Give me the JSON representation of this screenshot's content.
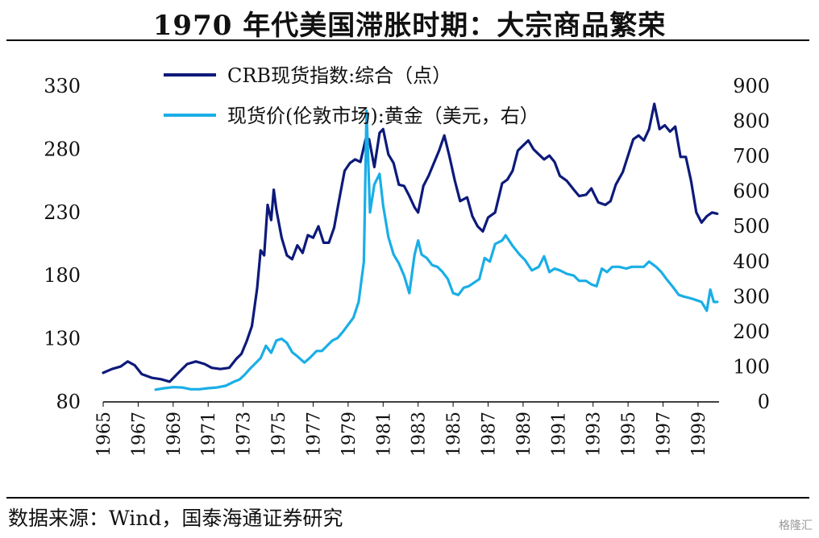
{
  "title": "1970 年代美国滞胀时期：大宗商品繁荣",
  "source": "数据来源：Wind，国泰海通证券研究",
  "watermark": "格隆汇",
  "colors": {
    "crb": "#0d1a7a",
    "gold": "#1aaee6",
    "axis": "#000000"
  },
  "chart_data": {
    "type": "line",
    "x_axis": {
      "ticks": [
        "1965",
        "1967",
        "1969",
        "1971",
        "1973",
        "1975",
        "1977",
        "1979",
        "1981",
        "1983",
        "1985",
        "1987",
        "1989",
        "1991",
        "1993",
        "1995",
        "1997",
        "1999"
      ],
      "range": [
        1965,
        2000.2
      ]
    },
    "y_left": {
      "ticks": [
        80,
        130,
        180,
        230,
        280,
        330
      ],
      "range": [
        80,
        330
      ]
    },
    "y_right": {
      "ticks": [
        0,
        100,
        200,
        300,
        400,
        500,
        600,
        700,
        800,
        900
      ],
      "range": [
        0,
        900
      ]
    },
    "series": [
      {
        "name": "CRB现货指数:综合（点）",
        "axis": "left",
        "points": [
          [
            1965.0,
            103
          ],
          [
            1965.5,
            106
          ],
          [
            1966.0,
            108
          ],
          [
            1966.4,
            112
          ],
          [
            1966.8,
            109
          ],
          [
            1967.2,
            102
          ],
          [
            1967.8,
            99
          ],
          [
            1968.3,
            98
          ],
          [
            1968.8,
            96
          ],
          [
            1969.3,
            103
          ],
          [
            1969.8,
            110
          ],
          [
            1970.3,
            112
          ],
          [
            1970.8,
            110
          ],
          [
            1971.2,
            107
          ],
          [
            1971.7,
            106
          ],
          [
            1972.2,
            107
          ],
          [
            1972.6,
            114
          ],
          [
            1972.9,
            118
          ],
          [
            1973.2,
            128
          ],
          [
            1973.5,
            140
          ],
          [
            1973.8,
            170
          ],
          [
            1974.0,
            200
          ],
          [
            1974.2,
            196
          ],
          [
            1974.4,
            236
          ],
          [
            1974.6,
            224
          ],
          [
            1974.75,
            248
          ],
          [
            1974.9,
            232
          ],
          [
            1975.2,
            210
          ],
          [
            1975.5,
            196
          ],
          [
            1975.8,
            193
          ],
          [
            1976.1,
            204
          ],
          [
            1976.4,
            198
          ],
          [
            1976.7,
            212
          ],
          [
            1977.0,
            210
          ],
          [
            1977.3,
            219
          ],
          [
            1977.6,
            206
          ],
          [
            1977.9,
            206
          ],
          [
            1978.2,
            218
          ],
          [
            1978.5,
            241
          ],
          [
            1978.8,
            263
          ],
          [
            1979.1,
            269
          ],
          [
            1979.4,
            272
          ],
          [
            1979.7,
            270
          ],
          [
            1980.0,
            288
          ],
          [
            1980.2,
            288
          ],
          [
            1980.5,
            266
          ],
          [
            1980.8,
            293
          ],
          [
            1981.0,
            296
          ],
          [
            1981.3,
            276
          ],
          [
            1981.6,
            269
          ],
          [
            1981.9,
            252
          ],
          [
            1982.2,
            251
          ],
          [
            1982.5,
            243
          ],
          [
            1982.8,
            234
          ],
          [
            1983.0,
            230
          ],
          [
            1983.3,
            251
          ],
          [
            1983.6,
            259
          ],
          [
            1983.9,
            269
          ],
          [
            1984.2,
            279
          ],
          [
            1984.5,
            291
          ],
          [
            1984.8,
            274
          ],
          [
            1985.1,
            255
          ],
          [
            1985.4,
            239
          ],
          [
            1985.8,
            242
          ],
          [
            1986.1,
            227
          ],
          [
            1986.4,
            219
          ],
          [
            1986.7,
            215
          ],
          [
            1987.0,
            226
          ],
          [
            1987.4,
            230
          ],
          [
            1987.8,
            253
          ],
          [
            1988.1,
            256
          ],
          [
            1988.4,
            263
          ],
          [
            1988.7,
            279
          ],
          [
            1989.0,
            283
          ],
          [
            1989.3,
            287
          ],
          [
            1989.6,
            280
          ],
          [
            1989.9,
            276
          ],
          [
            1990.2,
            272
          ],
          [
            1990.5,
            275
          ],
          [
            1990.8,
            270
          ],
          [
            1991.1,
            259
          ],
          [
            1991.5,
            255
          ],
          [
            1991.9,
            248
          ],
          [
            1992.2,
            243
          ],
          [
            1992.6,
            244
          ],
          [
            1992.9,
            249
          ],
          [
            1993.3,
            238
          ],
          [
            1993.7,
            236
          ],
          [
            1994.0,
            239
          ],
          [
            1994.3,
            252
          ],
          [
            1994.7,
            262
          ],
          [
            1995.0,
            275
          ],
          [
            1995.3,
            288
          ],
          [
            1995.6,
            291
          ],
          [
            1995.9,
            287
          ],
          [
            1996.2,
            296
          ],
          [
            1996.5,
            316
          ],
          [
            1996.8,
            296
          ],
          [
            1997.1,
            299
          ],
          [
            1997.4,
            294
          ],
          [
            1997.7,
            298
          ],
          [
            1998.0,
            274
          ],
          [
            1998.3,
            274
          ],
          [
            1998.6,
            255
          ],
          [
            1998.9,
            230
          ],
          [
            1999.2,
            222
          ],
          [
            1999.5,
            227
          ],
          [
            1999.8,
            230
          ],
          [
            2000.1,
            229
          ]
        ]
      },
      {
        "name": "现货价(伦敦市场):黄金（美元，右）",
        "axis": "right",
        "points": [
          [
            1968.0,
            35
          ],
          [
            1968.5,
            39
          ],
          [
            1969.0,
            42
          ],
          [
            1969.5,
            41
          ],
          [
            1970.0,
            36
          ],
          [
            1970.5,
            36
          ],
          [
            1971.0,
            39
          ],
          [
            1971.5,
            41
          ],
          [
            1972.0,
            46
          ],
          [
            1972.5,
            58
          ],
          [
            1972.8,
            64
          ],
          [
            1973.1,
            78
          ],
          [
            1973.4,
            95
          ],
          [
            1973.7,
            110
          ],
          [
            1974.0,
            125
          ],
          [
            1974.3,
            160
          ],
          [
            1974.6,
            140
          ],
          [
            1974.9,
            175
          ],
          [
            1975.2,
            180
          ],
          [
            1975.5,
            168
          ],
          [
            1975.8,
            142
          ],
          [
            1976.1,
            130
          ],
          [
            1976.5,
            112
          ],
          [
            1976.8,
            125
          ],
          [
            1977.2,
            145
          ],
          [
            1977.5,
            145
          ],
          [
            1977.8,
            160
          ],
          [
            1978.1,
            175
          ],
          [
            1978.4,
            182
          ],
          [
            1978.7,
            200
          ],
          [
            1979.0,
            220
          ],
          [
            1979.3,
            240
          ],
          [
            1979.6,
            285
          ],
          [
            1979.9,
            400
          ],
          [
            1980.05,
            830
          ],
          [
            1980.25,
            540
          ],
          [
            1980.5,
            620
          ],
          [
            1980.8,
            650
          ],
          [
            1981.0,
            560
          ],
          [
            1981.3,
            470
          ],
          [
            1981.6,
            420
          ],
          [
            1981.9,
            395
          ],
          [
            1982.2,
            360
          ],
          [
            1982.5,
            310
          ],
          [
            1982.8,
            420
          ],
          [
            1983.0,
            460
          ],
          [
            1983.2,
            420
          ],
          [
            1983.5,
            410
          ],
          [
            1983.8,
            390
          ],
          [
            1984.1,
            385
          ],
          [
            1984.4,
            370
          ],
          [
            1984.7,
            350
          ],
          [
            1985.0,
            310
          ],
          [
            1985.3,
            305
          ],
          [
            1985.6,
            325
          ],
          [
            1985.9,
            330
          ],
          [
            1986.2,
            340
          ],
          [
            1986.5,
            350
          ],
          [
            1986.8,
            410
          ],
          [
            1987.1,
            400
          ],
          [
            1987.4,
            450
          ],
          [
            1987.8,
            460
          ],
          [
            1988.0,
            475
          ],
          [
            1988.4,
            445
          ],
          [
            1988.8,
            420
          ],
          [
            1989.1,
            405
          ],
          [
            1989.5,
            375
          ],
          [
            1989.9,
            385
          ],
          [
            1990.2,
            415
          ],
          [
            1990.5,
            370
          ],
          [
            1990.8,
            380
          ],
          [
            1991.1,
            375
          ],
          [
            1991.5,
            365
          ],
          [
            1991.9,
            360
          ],
          [
            1992.2,
            345
          ],
          [
            1992.6,
            345
          ],
          [
            1992.9,
            335
          ],
          [
            1993.2,
            330
          ],
          [
            1993.5,
            380
          ],
          [
            1993.8,
            370
          ],
          [
            1994.1,
            385
          ],
          [
            1994.5,
            385
          ],
          [
            1994.9,
            380
          ],
          [
            1995.2,
            385
          ],
          [
            1995.6,
            385
          ],
          [
            1995.9,
            385
          ],
          [
            1996.2,
            400
          ],
          [
            1996.6,
            385
          ],
          [
            1996.9,
            370
          ],
          [
            1997.2,
            350
          ],
          [
            1997.6,
            325
          ],
          [
            1997.9,
            305
          ],
          [
            1998.2,
            300
          ],
          [
            1998.6,
            295
          ],
          [
            1998.9,
            290
          ],
          [
            1999.2,
            285
          ],
          [
            1999.5,
            260
          ],
          [
            1999.7,
            320
          ],
          [
            1999.9,
            285
          ],
          [
            2000.1,
            285
          ]
        ]
      }
    ],
    "legend_placement": "top-left",
    "grid": false
  }
}
